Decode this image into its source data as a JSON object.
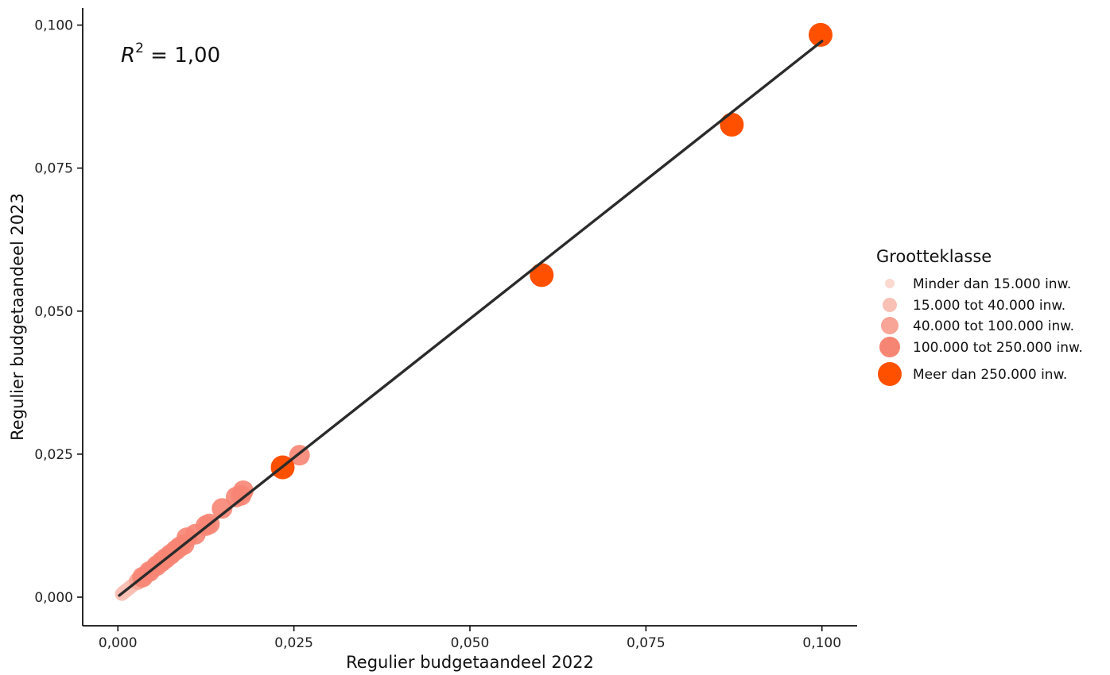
{
  "chart_data": {
    "type": "scatter",
    "xlabel": "Regulier budgetaandeel 2022",
    "ylabel": "Regulier budgetaandeel 2023",
    "xlim": [
      -0.005,
      0.105
    ],
    "ylim": [
      -0.005,
      0.103
    ],
    "x_ticks": [
      {
        "value": 0.0,
        "label": "0,000"
      },
      {
        "value": 0.025,
        "label": "0,025"
      },
      {
        "value": 0.05,
        "label": "0,050"
      },
      {
        "value": 0.075,
        "label": "0,075"
      },
      {
        "value": 0.1,
        "label": "0,100"
      }
    ],
    "y_ticks": [
      {
        "value": 0.0,
        "label": "0,000"
      },
      {
        "value": 0.025,
        "label": "0,025"
      },
      {
        "value": 0.05,
        "label": "0,050"
      },
      {
        "value": 0.075,
        "label": "0,075"
      },
      {
        "value": 0.1,
        "label": "0,100"
      }
    ],
    "grid": false,
    "annotation": {
      "r_label": "R",
      "superscript": "2",
      "text": " = 1,00"
    },
    "trendline": {
      "x": [
        0.0002,
        0.1
      ],
      "y": [
        0.0003,
        0.0972
      ],
      "color": "#2b2b2b"
    },
    "legend": {
      "title": "Grootteklasse",
      "placement": "right",
      "entries": [
        {
          "label": "Minder dan 15.000 inw.",
          "color": "#fbd9d0"
        },
        {
          "label": "15.000 tot 40.000 inw.",
          "color": "#f9c0b5"
        },
        {
          "label": "40.000 tot 100.000 inw.",
          "color": "#f8a496"
        },
        {
          "label": "100.000 tot 250.000 inw.",
          "color": "#f78574"
        },
        {
          "label": "Meer dan 250.000 inw.",
          "color": "#ff5000"
        }
      ]
    },
    "series": [
      {
        "class": 0,
        "points": [
          [
            0.0003,
            0.0003
          ],
          [
            0.0005,
            0.0005
          ],
          [
            0.0007,
            0.0007
          ],
          [
            0.0009,
            0.0009
          ],
          [
            0.0011,
            0.0011
          ],
          [
            0.0013,
            0.0013
          ]
        ]
      },
      {
        "class": 1,
        "points": [
          [
            0.0006,
            0.0006
          ],
          [
            0.0009,
            0.0009
          ],
          [
            0.0012,
            0.0012
          ],
          [
            0.0015,
            0.0015
          ],
          [
            0.0018,
            0.0018
          ],
          [
            0.0021,
            0.0021
          ],
          [
            0.0024,
            0.0024
          ],
          [
            0.0027,
            0.0027
          ],
          [
            0.003,
            0.003
          ]
        ]
      },
      {
        "class": 2,
        "points": [
          [
            0.0028,
            0.0028
          ],
          [
            0.0033,
            0.0033
          ],
          [
            0.0038,
            0.0038
          ],
          [
            0.0043,
            0.0043
          ],
          [
            0.0048,
            0.0048
          ],
          [
            0.0053,
            0.0053
          ],
          [
            0.0058,
            0.0058
          ],
          [
            0.0064,
            0.0064
          ],
          [
            0.007,
            0.007
          ],
          [
            0.0076,
            0.0075
          ],
          [
            0.0082,
            0.0081
          ]
        ]
      },
      {
        "class": 3,
        "points": [
          [
            0.0035,
            0.0035
          ],
          [
            0.0045,
            0.0045
          ],
          [
            0.0055,
            0.0055
          ],
          [
            0.0062,
            0.0062
          ],
          [
            0.0068,
            0.0068
          ],
          [
            0.0075,
            0.0075
          ],
          [
            0.0082,
            0.0082
          ],
          [
            0.0088,
            0.0088
          ],
          [
            0.0094,
            0.0092
          ],
          [
            0.0098,
            0.0104
          ],
          [
            0.011,
            0.011
          ],
          [
            0.0125,
            0.0125
          ],
          [
            0.013,
            0.0128
          ],
          [
            0.0148,
            0.0155
          ],
          [
            0.0168,
            0.0175
          ],
          [
            0.0175,
            0.0178
          ],
          [
            0.0178,
            0.0186
          ],
          [
            0.0258,
            0.0248
          ]
        ]
      },
      {
        "class": 4,
        "points": [
          [
            0.0234,
            0.0227
          ],
          [
            0.0602,
            0.0563
          ],
          [
            0.0872,
            0.0826
          ],
          [
            0.0998,
            0.0983
          ]
        ]
      }
    ]
  }
}
